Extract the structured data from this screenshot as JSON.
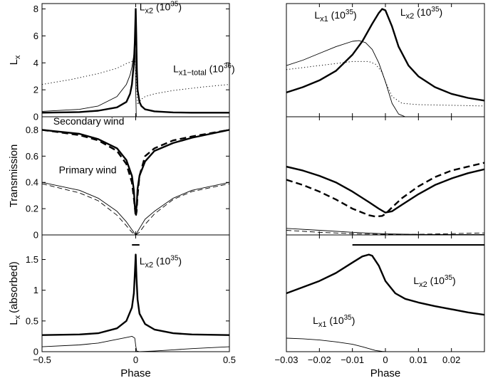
{
  "chart_data": {
    "type": "line",
    "title": "",
    "shared_xlabel": "Phase",
    "panels": [
      {
        "id": "left-top",
        "xlim": [
          -0.5,
          0.5
        ],
        "ylim": [
          0,
          8.4
        ],
        "ylabel": "L_x",
        "yticks": [
          0,
          2,
          4,
          6,
          8
        ],
        "ytick_labels": [
          "0",
          "2",
          "4",
          "6",
          "8"
        ],
        "xticks": [
          -0.5,
          0,
          0.5
        ],
        "xtick_labels": [],
        "series": [
          {
            "name": "Lx2 (10^35)",
            "style": "thick",
            "x": [
              -0.5,
              -0.3,
              -0.2,
              -0.1,
              -0.05,
              -0.03,
              -0.02,
              -0.01,
              -0.005,
              0.0,
              0.003,
              0.006,
              0.01,
              0.02,
              0.03,
              0.05,
              0.1,
              0.2,
              0.3,
              0.5
            ],
            "y": [
              0.3,
              0.35,
              0.45,
              0.7,
              1.1,
              1.7,
              2.4,
              4.0,
              5.5,
              8.0,
              6.0,
              3.5,
              2.0,
              1.1,
              0.8,
              0.55,
              0.4,
              0.32,
              0.3,
              0.3
            ]
          },
          {
            "name": "Lx1 (10^35)",
            "style": "thin",
            "x": [
              -0.5,
              -0.3,
              -0.2,
              -0.1,
              -0.05,
              -0.03,
              -0.02,
              -0.01,
              -0.004,
              0.0,
              0.003,
              0.5
            ],
            "y": [
              0.4,
              0.55,
              0.8,
              1.5,
              2.4,
              3.1,
              3.7,
              4.6,
              5.8,
              2.0,
              0.0,
              0.0
            ]
          },
          {
            "name": "Lx1-total (10^36)",
            "style": "dotted",
            "x": [
              -0.5,
              -0.35,
              -0.2,
              -0.1,
              -0.05,
              -0.02,
              -0.005,
              0.0,
              0.01,
              0.03,
              0.05,
              0.1,
              0.2,
              0.35,
              0.5
            ],
            "y": [
              2.4,
              2.75,
              3.2,
              3.6,
              3.95,
              4.1,
              4.1,
              3.5,
              0.9,
              1.3,
              1.5,
              1.7,
              1.95,
              2.2,
              2.4
            ]
          }
        ],
        "annotations": [
          {
            "text": "L",
            "sub": "x2",
            "after": " (10",
            "sup": "35",
            "end": ")",
            "at": [
              0.02,
              7.9
            ]
          },
          {
            "text": "L",
            "sub": "x1−total",
            "after": " (10",
            "sup": "36",
            "end": ")",
            "at": [
              0.2,
              3.3
            ]
          }
        ]
      },
      {
        "id": "right-top",
        "xlim": [
          -0.03,
          0.03
        ],
        "ylim": [
          0,
          8.4
        ],
        "xticks": [
          -0.03,
          -0.02,
          -0.01,
          0,
          0.01,
          0.02
        ],
        "series": [
          {
            "name": "Lx2 (10^35)",
            "style": "thick",
            "x": [
              -0.03,
              -0.025,
              -0.02,
              -0.015,
              -0.01,
              -0.007,
              -0.004,
              -0.002,
              -0.001,
              0.0,
              0.002,
              0.004,
              0.007,
              0.01,
              0.015,
              0.02,
              0.025,
              0.03
            ],
            "y": [
              1.8,
              2.2,
              2.7,
              3.4,
              4.6,
              5.6,
              6.9,
              7.7,
              8.0,
              7.9,
              6.7,
              5.2,
              3.8,
              3.0,
              2.2,
              1.7,
              1.4,
              1.2
            ]
          },
          {
            "name": "Lx1 (10^35)",
            "style": "thin",
            "x": [
              -0.03,
              -0.025,
              -0.02,
              -0.015,
              -0.01,
              -0.008,
              -0.006,
              -0.004,
              -0.002,
              0.0,
              0.002,
              0.004,
              0.006,
              0.03
            ],
            "y": [
              3.8,
              4.2,
              4.7,
              5.2,
              5.6,
              5.65,
              5.5,
              5.0,
              4.0,
              2.6,
              1.0,
              0.2,
              0.0,
              0.0
            ]
          },
          {
            "name": "Lx1-total (10^36)",
            "style": "dotted",
            "x": [
              -0.03,
              -0.02,
              -0.01,
              -0.005,
              -0.003,
              -0.001,
              0.0,
              0.002,
              0.005,
              0.01,
              0.02,
              0.03
            ],
            "y": [
              3.5,
              3.8,
              4.1,
              4.1,
              3.9,
              3.3,
              2.6,
              1.5,
              1.0,
              0.9,
              0.85,
              0.8
            ]
          }
        ],
        "annotations": [
          {
            "text": "L",
            "sub": "x1",
            "after": " (10",
            "sup": "35",
            "end": ")",
            "at": [
              -0.0215,
              7.3
            ]
          },
          {
            "text": "L",
            "sub": "x2",
            "after": " (10",
            "sup": "35",
            "end": ")",
            "at": [
              0.0045,
              7.5
            ]
          }
        ]
      },
      {
        "id": "left-mid",
        "xlim": [
          -0.5,
          0.5
        ],
        "ylim": [
          0,
          0.9
        ],
        "ylabel": "Transmission",
        "yticks": [
          0,
          0.2,
          0.4,
          0.6,
          0.8
        ],
        "ytick_labels": [
          "0",
          "0.2",
          "0.4",
          "0.6",
          "0.8"
        ],
        "xticks": [
          -0.5,
          0,
          0.5
        ],
        "xtick_labels": [],
        "series": [
          {
            "name": "Secondary wind (solid)",
            "style": "thick",
            "x": [
              -0.5,
              -0.3,
              -0.2,
              -0.1,
              -0.05,
              -0.02,
              -0.01,
              -0.005,
              0.0,
              0.005,
              0.01,
              0.02,
              0.05,
              0.1,
              0.2,
              0.3,
              0.5
            ],
            "y": [
              0.8,
              0.77,
              0.73,
              0.66,
              0.57,
              0.45,
              0.34,
              0.22,
              0.16,
              0.22,
              0.35,
              0.45,
              0.56,
              0.64,
              0.7,
              0.74,
              0.8
            ]
          },
          {
            "name": "Secondary wind (dashed)",
            "style": "thick-dashed",
            "x": [
              -0.5,
              -0.3,
              -0.2,
              -0.1,
              -0.05,
              -0.02,
              -0.01,
              0.0,
              0.005,
              0.01,
              0.02,
              0.05,
              0.1,
              0.2,
              0.3,
              0.5
            ],
            "y": [
              0.8,
              0.76,
              0.72,
              0.64,
              0.54,
              0.4,
              0.28,
              0.14,
              0.18,
              0.3,
              0.45,
              0.6,
              0.66,
              0.72,
              0.75,
              0.8
            ]
          },
          {
            "name": "Primary wind (solid)",
            "style": "thin",
            "x": [
              -0.5,
              -0.3,
              -0.2,
              -0.1,
              -0.05,
              -0.02,
              0.0,
              0.02,
              0.05,
              0.1,
              0.2,
              0.3,
              0.5
            ],
            "y": [
              0.4,
              0.34,
              0.28,
              0.18,
              0.1,
              0.04,
              0.0,
              0.05,
              0.12,
              0.18,
              0.28,
              0.34,
              0.4
            ]
          },
          {
            "name": "Primary wind (dashed)",
            "style": "thin-dashed",
            "x": [
              -0.5,
              -0.3,
              -0.2,
              -0.1,
              -0.05,
              -0.02,
              0.0,
              0.02,
              0.05,
              0.1,
              0.2,
              0.3,
              0.5
            ],
            "y": [
              0.39,
              0.32,
              0.26,
              0.15,
              0.07,
              0.02,
              0.0,
              0.02,
              0.08,
              0.16,
              0.27,
              0.33,
              0.39
            ]
          }
        ],
        "annotations": [
          {
            "text": "Secondary wind",
            "at": [
              -0.44,
              0.84
            ]
          },
          {
            "text": "Primary wind",
            "at": [
              -0.41,
              0.47
            ]
          }
        ]
      },
      {
        "id": "right-mid",
        "xlim": [
          -0.03,
          0.03
        ],
        "ylim": [
          0,
          0.9
        ],
        "xticks": [
          -0.03,
          -0.02,
          -0.01,
          0,
          0.01,
          0.02
        ],
        "series": [
          {
            "name": "Secondary wind (solid)",
            "style": "thick",
            "x": [
              -0.03,
              -0.025,
              -0.02,
              -0.015,
              -0.01,
              -0.005,
              -0.002,
              0.0,
              0.002,
              0.005,
              0.01,
              0.015,
              0.02,
              0.025,
              0.03
            ],
            "y": [
              0.52,
              0.49,
              0.45,
              0.4,
              0.33,
              0.25,
              0.2,
              0.17,
              0.18,
              0.23,
              0.31,
              0.38,
              0.43,
              0.47,
              0.5
            ]
          },
          {
            "name": "Secondary wind (dashed)",
            "style": "thick-dashed",
            "x": [
              -0.03,
              -0.025,
              -0.02,
              -0.015,
              -0.01,
              -0.005,
              -0.003,
              -0.001,
              0.0,
              0.002,
              0.005,
              0.01,
              0.015,
              0.02,
              0.025,
              0.03
            ],
            "y": [
              0.42,
              0.38,
              0.33,
              0.27,
              0.2,
              0.15,
              0.14,
              0.145,
              0.16,
              0.21,
              0.28,
              0.37,
              0.44,
              0.49,
              0.52,
              0.55
            ]
          },
          {
            "name": "Primary wind (solid)",
            "style": "thin",
            "x": [
              -0.03,
              -0.02,
              -0.01,
              0.0,
              0.01,
              0.02,
              0.03
            ],
            "y": [
              0.05,
              0.035,
              0.02,
              0.008,
              0.004,
              0.003,
              0.003
            ]
          },
          {
            "name": "Primary wind (dashed)",
            "style": "thin-dashed",
            "x": [
              -0.03,
              -0.02,
              -0.01,
              0.0,
              0.01,
              0.02,
              0.03
            ],
            "y": [
              0.035,
              0.02,
              0.01,
              0.003,
              0.005,
              0.01,
              0.015
            ]
          }
        ],
        "annotations": []
      },
      {
        "id": "left-bottom",
        "xlim": [
          -0.5,
          0.5
        ],
        "ylim": [
          0,
          1.9
        ],
        "ylabel": "L_x (absorbed)",
        "yticks": [
          0,
          0.5,
          1,
          1.5
        ],
        "ytick_labels": [
          "0",
          "0.5",
          "1",
          "1.5"
        ],
        "xticks": [
          -0.5,
          0,
          0.5
        ],
        "xtick_labels": [
          "−0.5",
          "0",
          "0.5"
        ],
        "xlabel": "Phase",
        "series": [
          {
            "name": "Lx2 absorbed (10^35)",
            "style": "thick",
            "x": [
              -0.5,
              -0.3,
              -0.2,
              -0.1,
              -0.05,
              -0.02,
              -0.01,
              -0.004,
              0.0,
              0.004,
              0.01,
              0.02,
              0.05,
              0.1,
              0.2,
              0.3,
              0.5
            ],
            "y": [
              0.27,
              0.28,
              0.3,
              0.38,
              0.5,
              0.72,
              0.95,
              1.3,
              1.58,
              1.2,
              0.85,
              0.62,
              0.45,
              0.36,
              0.3,
              0.28,
              0.27
            ]
          },
          {
            "name": "Lx1 absorbed (10^35)",
            "style": "thin",
            "x": [
              -0.5,
              -0.3,
              -0.2,
              -0.1,
              -0.05,
              -0.02,
              -0.005,
              0.0,
              0.005,
              0.02,
              0.1,
              0.2,
              0.3,
              0.5
            ],
            "y": [
              0.08,
              0.11,
              0.14,
              0.2,
              0.23,
              0.25,
              0.22,
              0.1,
              0.01,
              0.0,
              0.01,
              0.03,
              0.05,
              0.08
            ]
          }
        ],
        "annotations": [
          {
            "text": "L",
            "sub": "x2",
            "after": " (10",
            "sup": "35",
            "end": ")",
            "at": [
              0.02,
              1.42
            ]
          }
        ],
        "marker_bar": {
          "x": [
            -0.02,
            0.02
          ],
          "above_top": true
        }
      },
      {
        "id": "right-bottom",
        "xlim": [
          -0.03,
          0.03
        ],
        "ylim": [
          0,
          1.9
        ],
        "xticks": [
          -0.03,
          -0.02,
          -0.01,
          0,
          0.01,
          0.02
        ],
        "xtick_labels": [
          "−0.03",
          "−0.02",
          "−0.01",
          "0",
          "0.01",
          "0.02"
        ],
        "xlabel": "Phase",
        "series": [
          {
            "name": "Lx2 absorbed (10^35)",
            "style": "thick",
            "x": [
              -0.03,
              -0.025,
              -0.02,
              -0.015,
              -0.01,
              -0.007,
              -0.005,
              -0.004,
              -0.002,
              0.0,
              0.003,
              0.006,
              0.01,
              0.015,
              0.02,
              0.025,
              0.03
            ],
            "y": [
              0.95,
              1.05,
              1.15,
              1.28,
              1.45,
              1.55,
              1.58,
              1.56,
              1.4,
              1.15,
              0.95,
              0.86,
              0.8,
              0.74,
              0.69,
              0.64,
              0.6
            ]
          },
          {
            "name": "Lx1 absorbed (10^35)",
            "style": "thin",
            "x": [
              -0.03,
              -0.025,
              -0.02,
              -0.015,
              -0.01,
              -0.007,
              -0.005,
              -0.003,
              -0.001,
              0.0,
              0.03
            ],
            "y": [
              0.22,
              0.21,
              0.19,
              0.16,
              0.12,
              0.08,
              0.05,
              0.02,
              0.005,
              0.0,
              0.0
            ]
          }
        ],
        "annotations": [
          {
            "text": "L",
            "sub": "x2",
            "after": " (10",
            "sup": "35",
            "end": ")",
            "at": [
              0.0085,
              1.1
            ]
          },
          {
            "text": "L",
            "sub": "x1",
            "after": " (10",
            "sup": "35",
            "end": ")",
            "at": [
              -0.022,
              0.45
            ]
          }
        ],
        "marker_bar": {
          "x": [
            -0.01,
            0.03
          ],
          "above_top": true
        }
      }
    ]
  }
}
